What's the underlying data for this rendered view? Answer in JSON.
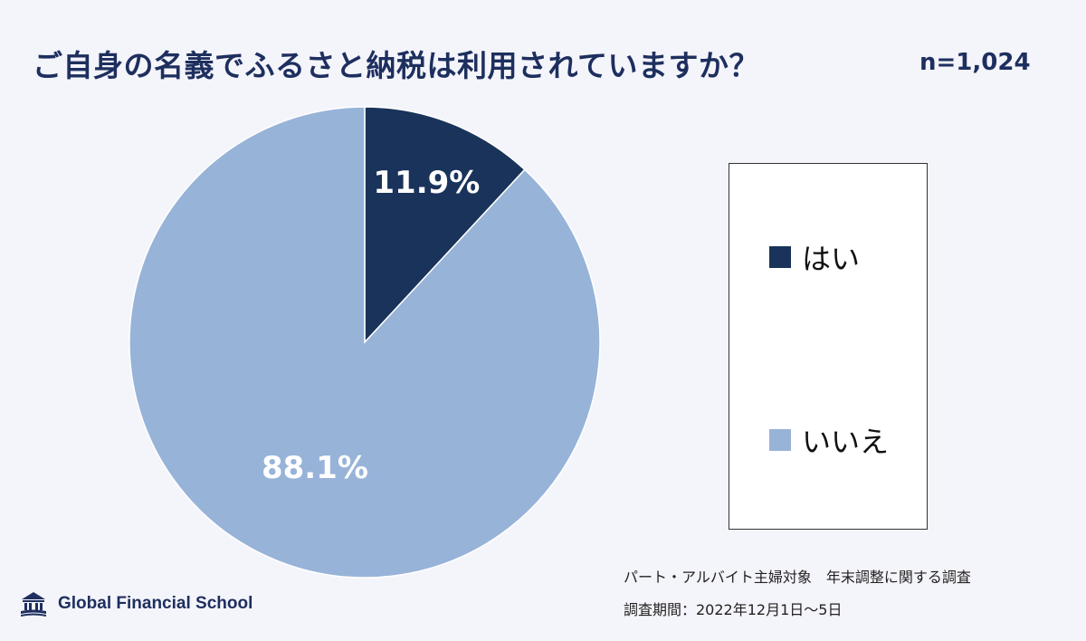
{
  "header": {
    "title": "ご自身の名義でふるさと納税は利用されていますか？",
    "sample_size": "n=1,024"
  },
  "chart_data": {
    "type": "pie",
    "title": "ご自身の名義でふるさと納税は利用されていますか？",
    "categories": [
      "はい",
      "いいえ"
    ],
    "values": [
      11.9,
      88.1
    ],
    "labels": [
      "11.9%",
      "88.1%"
    ],
    "colors": [
      "#19335a",
      "#97b3d8"
    ],
    "legend_position": "right"
  },
  "legend": {
    "items": [
      {
        "label": "はい",
        "color": "#19335a"
      },
      {
        "label": "いいえ",
        "color": "#97b3d8"
      }
    ]
  },
  "footer": {
    "source_line1": "パート・アルバイト主婦対象　年末調整に関する調査",
    "source_line2": "調査期間：2022年12月1日～5日",
    "brand": "Global Financial School"
  }
}
